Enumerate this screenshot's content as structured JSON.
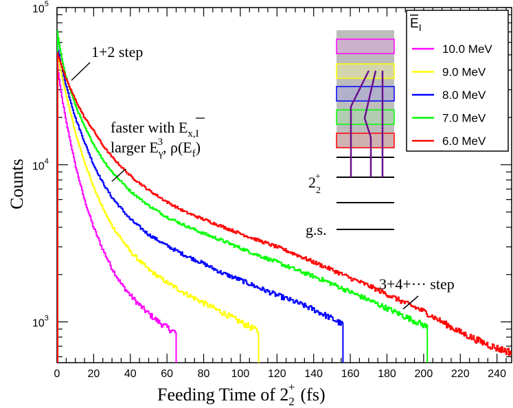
{
  "chart_data": {
    "type": "line",
    "xlabel": "Feeding Time of 2",
    "xlabel_sub": "2",
    "xlabel_sup": "+",
    "xlabel_unit": "(fs)",
    "ylabel": "Counts",
    "x_range": [
      0,
      248
    ],
    "y_range": [
      550,
      100000
    ],
    "y_scale": "log",
    "x_ticks": [
      0,
      20,
      40,
      60,
      80,
      100,
      120,
      140,
      160,
      180,
      200,
      220,
      240
    ],
    "y_tick_labels": [
      {
        "base": "10",
        "exp": "3",
        "value": 1000
      },
      {
        "base": "10",
        "exp": "4",
        "value": 10000
      },
      {
        "base": "10",
        "exp": "5",
        "value": 100000
      }
    ],
    "legend": {
      "title": "E",
      "title_sub": "I",
      "placement": "top-right",
      "entries": [
        {
          "label": "10.0 MeV",
          "color": "#ff00ff"
        },
        {
          "label": "9.0 MeV",
          "color": "#ffff00"
        },
        {
          "label": "8.0 MeV",
          "color": "#0000ff"
        },
        {
          "label": "7.0 MeV",
          "color": "#00ff00"
        },
        {
          "label": "6.0 MeV",
          "color": "#ff0000"
        }
      ]
    },
    "series": [
      {
        "name": "10.0 MeV",
        "color": "#ff00ff",
        "end_x": 65,
        "y0": 45000,
        "points": [
          [
            0,
            45000
          ],
          [
            2,
            30000
          ],
          [
            5,
            19000
          ],
          [
            10,
            10000
          ],
          [
            15,
            6000
          ],
          [
            20,
            4000
          ],
          [
            25,
            2900
          ],
          [
            30,
            2200
          ],
          [
            35,
            1750
          ],
          [
            40,
            1480
          ],
          [
            45,
            1280
          ],
          [
            50,
            1130
          ],
          [
            55,
            1010
          ],
          [
            60,
            920
          ],
          [
            65,
            850
          ]
        ]
      },
      {
        "name": "9.0 MeV",
        "color": "#ffff00",
        "end_x": 110,
        "y0": 55000,
        "points": [
          [
            0,
            55000
          ],
          [
            2,
            40000
          ],
          [
            5,
            28000
          ],
          [
            10,
            16000
          ],
          [
            15,
            10500
          ],
          [
            20,
            7200
          ],
          [
            25,
            5300
          ],
          [
            30,
            4100
          ],
          [
            40,
            2800
          ],
          [
            50,
            2150
          ],
          [
            60,
            1780
          ],
          [
            70,
            1520
          ],
          [
            80,
            1320
          ],
          [
            90,
            1150
          ],
          [
            100,
            1000
          ],
          [
            110,
            870
          ]
        ]
      },
      {
        "name": "8.0 MeV",
        "color": "#0000ff",
        "end_x": 156,
        "y0": 60000,
        "points": [
          [
            0,
            60000
          ],
          [
            2,
            45000
          ],
          [
            5,
            32000
          ],
          [
            10,
            20000
          ],
          [
            15,
            14000
          ],
          [
            20,
            10000
          ],
          [
            25,
            7700
          ],
          [
            30,
            6200
          ],
          [
            40,
            4500
          ],
          [
            50,
            3600
          ],
          [
            60,
            3050
          ],
          [
            70,
            2650
          ],
          [
            80,
            2350
          ],
          [
            90,
            2050
          ],
          [
            100,
            1850
          ],
          [
            110,
            1650
          ],
          [
            120,
            1480
          ],
          [
            130,
            1340
          ],
          [
            140,
            1200
          ],
          [
            150,
            1050
          ],
          [
            156,
            960
          ]
        ]
      },
      {
        "name": "7.0 MeV",
        "color": "#00ff00",
        "end_x": 202,
        "y0": 72000,
        "points": [
          [
            0,
            72000
          ],
          [
            2,
            52000
          ],
          [
            5,
            36000
          ],
          [
            10,
            24000
          ],
          [
            15,
            17500
          ],
          [
            20,
            13500
          ],
          [
            25,
            10800
          ],
          [
            30,
            9000
          ],
          [
            40,
            6800
          ],
          [
            50,
            5500
          ],
          [
            60,
            4650
          ],
          [
            70,
            4100
          ],
          [
            80,
            3650
          ],
          [
            90,
            3300
          ],
          [
            100,
            2950
          ],
          [
            110,
            2650
          ],
          [
            120,
            2400
          ],
          [
            130,
            2150
          ],
          [
            140,
            1950
          ],
          [
            150,
            1750
          ],
          [
            160,
            1550
          ],
          [
            170,
            1380
          ],
          [
            180,
            1220
          ],
          [
            190,
            1080
          ],
          [
            202,
            930
          ]
        ]
      },
      {
        "name": "6.0 MeV",
        "color": "#ff0000",
        "end_x": 248,
        "y0": 52000,
        "points": [
          [
            0,
            52000
          ],
          [
            2,
            45000
          ],
          [
            5,
            35000
          ],
          [
            10,
            26000
          ],
          [
            15,
            20000
          ],
          [
            20,
            16500
          ],
          [
            25,
            13300
          ],
          [
            30,
            11200
          ],
          [
            40,
            8500
          ],
          [
            50,
            6900
          ],
          [
            60,
            5800
          ],
          [
            70,
            5000
          ],
          [
            80,
            4500
          ],
          [
            90,
            4050
          ],
          [
            100,
            3650
          ],
          [
            110,
            3300
          ],
          [
            120,
            3000
          ],
          [
            130,
            2700
          ],
          [
            140,
            2400
          ],
          [
            150,
            2150
          ],
          [
            160,
            1900
          ],
          [
            170,
            1700
          ],
          [
            180,
            1500
          ],
          [
            190,
            1320
          ],
          [
            200,
            1170
          ],
          [
            210,
            1000
          ],
          [
            220,
            860
          ],
          [
            230,
            760
          ],
          [
            240,
            680
          ],
          [
            248,
            640
          ]
        ]
      }
    ],
    "annotations": {
      "step12": "1+2 step",
      "faster_prefix": "faster with ",
      "faster_E": "E",
      "faster_sub": "x,I",
      "larger_prefix": "larger ",
      "larger_E": "E",
      "larger_sub": "γ",
      "larger_sup": "3",
      "larger_rho": ",  ρ(E",
      "larger_rho_sub": "f",
      "larger_rho_close": ")",
      "step34": "3+4+··· step",
      "level_2": "2",
      "level_2_sub": "2",
      "level_2_sup": "+",
      "level_gs": "g.s."
    }
  }
}
